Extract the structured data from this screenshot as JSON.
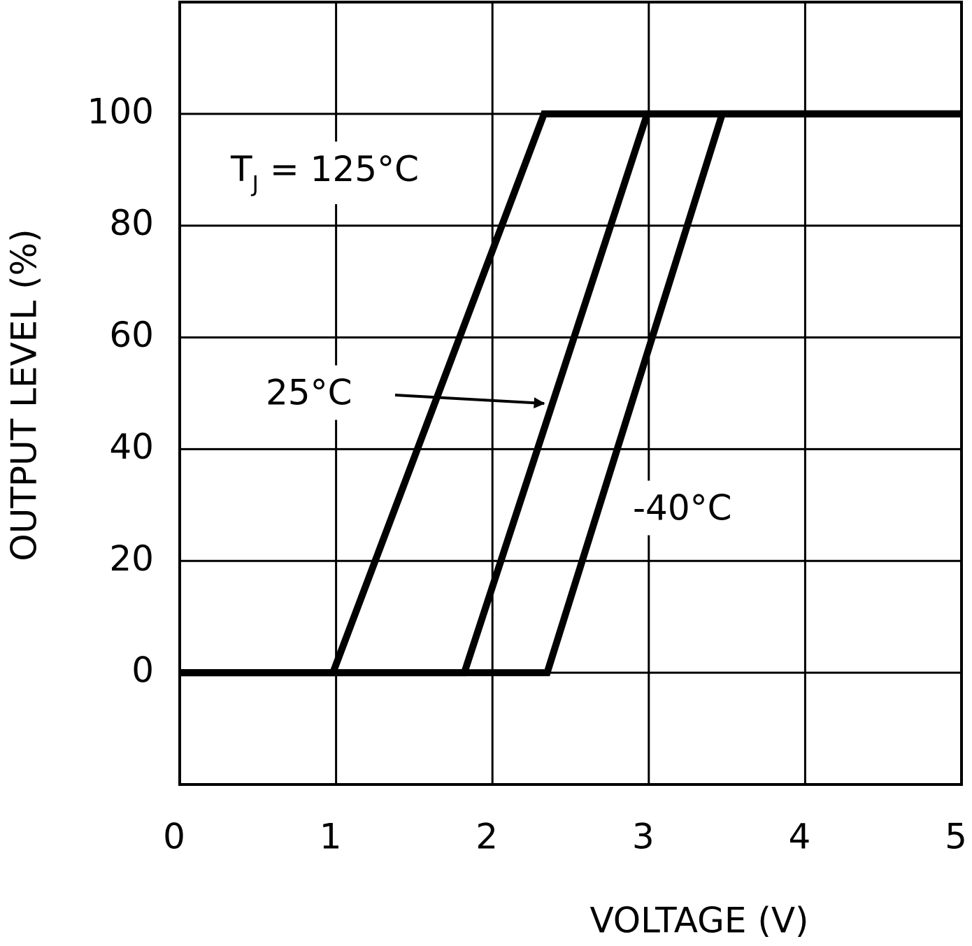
{
  "chart_data": {
    "type": "line",
    "x_label": "VOLTAGE (V)",
    "y_label": "OUTPUT LEVEL (%)",
    "xlim": [
      0,
      5
    ],
    "xticks": [
      0,
      1,
      2,
      3,
      4,
      5
    ],
    "ylim": [
      -20,
      120
    ],
    "yticks": [
      0,
      20,
      40,
      60,
      80,
      100
    ],
    "grid": true,
    "series": [
      {
        "name": "TJ = 125°C",
        "color": "#000000",
        "x": [
          0,
          0.98,
          2.33,
          5
        ],
        "values": [
          0,
          0,
          100,
          100
        ]
      },
      {
        "name": "25°C",
        "color": "#000000",
        "x": [
          0,
          1.82,
          2.99,
          5
        ],
        "values": [
          0,
          0,
          100,
          100
        ]
      },
      {
        "name": "-40°C",
        "color": "#000000",
        "x": [
          0,
          2.35,
          3.47,
          5
        ],
        "values": [
          0,
          0,
          100,
          100
        ]
      }
    ]
  }
}
